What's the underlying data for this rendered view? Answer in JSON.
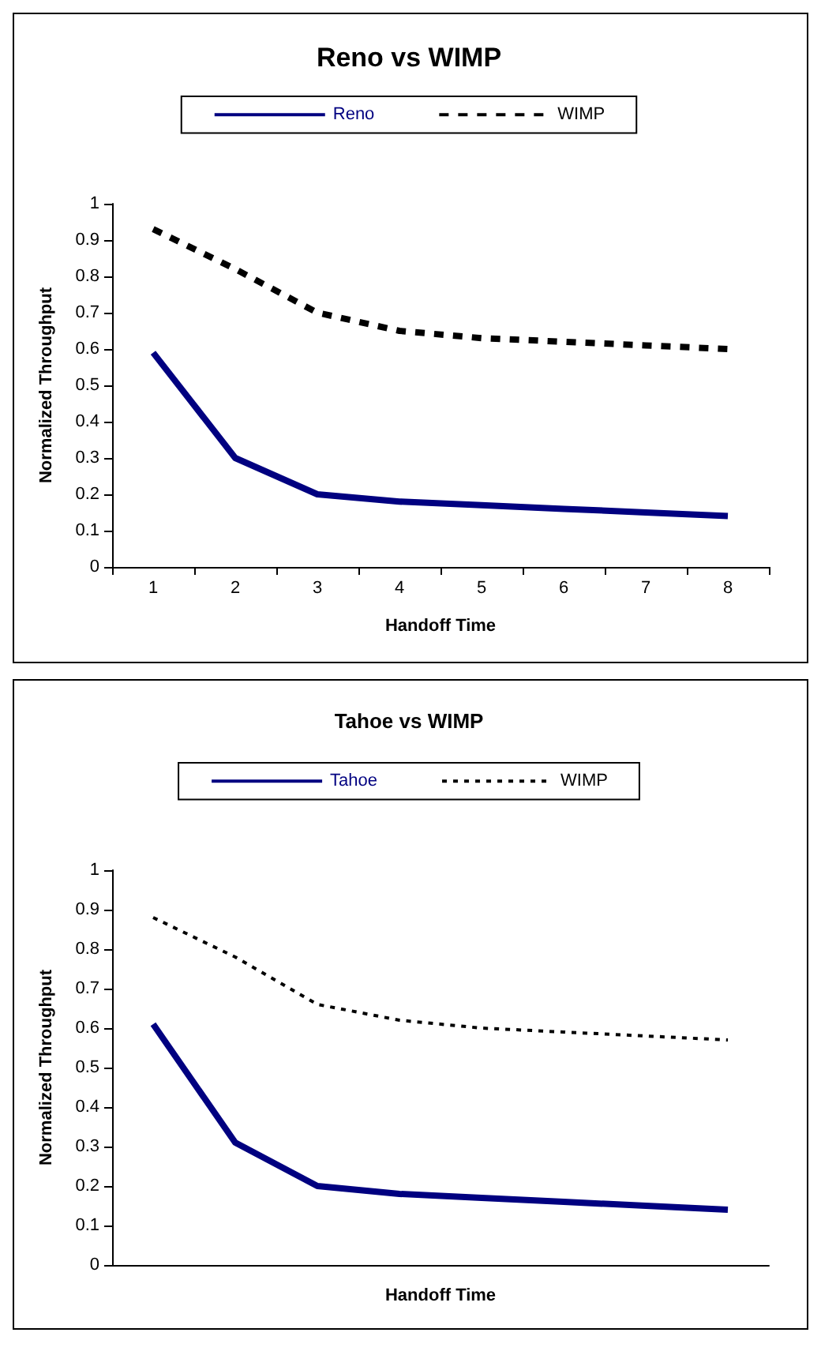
{
  "chart_data": [
    {
      "type": "line",
      "title": "Reno vs WIMP",
      "xlabel": "Handoff Time",
      "ylabel": "Normalized Throughput",
      "categories": [
        "1",
        "2",
        "3",
        "4",
        "5",
        "6",
        "7",
        "8"
      ],
      "series": [
        {
          "name": "Reno",
          "color": "#000080",
          "line_style": "solid",
          "values": [
            0.59,
            0.3,
            0.2,
            0.18,
            0.17,
            0.16,
            0.15,
            0.14
          ]
        },
        {
          "name": "WIMP",
          "color": "#000000",
          "line_style": "dashed",
          "values": [
            0.93,
            0.82,
            0.7,
            0.65,
            0.63,
            0.62,
            0.61,
            0.6
          ]
        }
      ],
      "ylim": [
        0,
        1
      ],
      "yticks": [
        0,
        0.1,
        0.2,
        0.3,
        0.4,
        0.5,
        0.6,
        0.7,
        0.8,
        0.9,
        1
      ],
      "grid": false,
      "legend": "top",
      "marker": "none"
    },
    {
      "type": "line",
      "title": "Tahoe vs WIMP",
      "xlabel": "Handoff Time",
      "ylabel": "Normalized Throughput",
      "categories": [
        null,
        null,
        null,
        null,
        null,
        null,
        null,
        null
      ],
      "series": [
        {
          "name": "Tahoe",
          "color": "#000080",
          "line_style": "solid",
          "values": [
            0.61,
            0.31,
            0.2,
            0.18,
            0.17,
            0.16,
            0.15,
            0.14
          ]
        },
        {
          "name": "WIMP",
          "color": "#000000",
          "line_style": "dotted",
          "values": [
            0.88,
            0.78,
            0.66,
            0.62,
            0.6,
            0.59,
            0.58,
            0.57
          ]
        }
      ],
      "ylim": [
        0,
        1
      ],
      "yticks": [
        0,
        0.1,
        0.2,
        0.3,
        0.4,
        0.5,
        0.6,
        0.7,
        0.8,
        0.9,
        1
      ],
      "grid": false,
      "legend": "top",
      "marker": "none",
      "tick_labels": "y"
    }
  ]
}
